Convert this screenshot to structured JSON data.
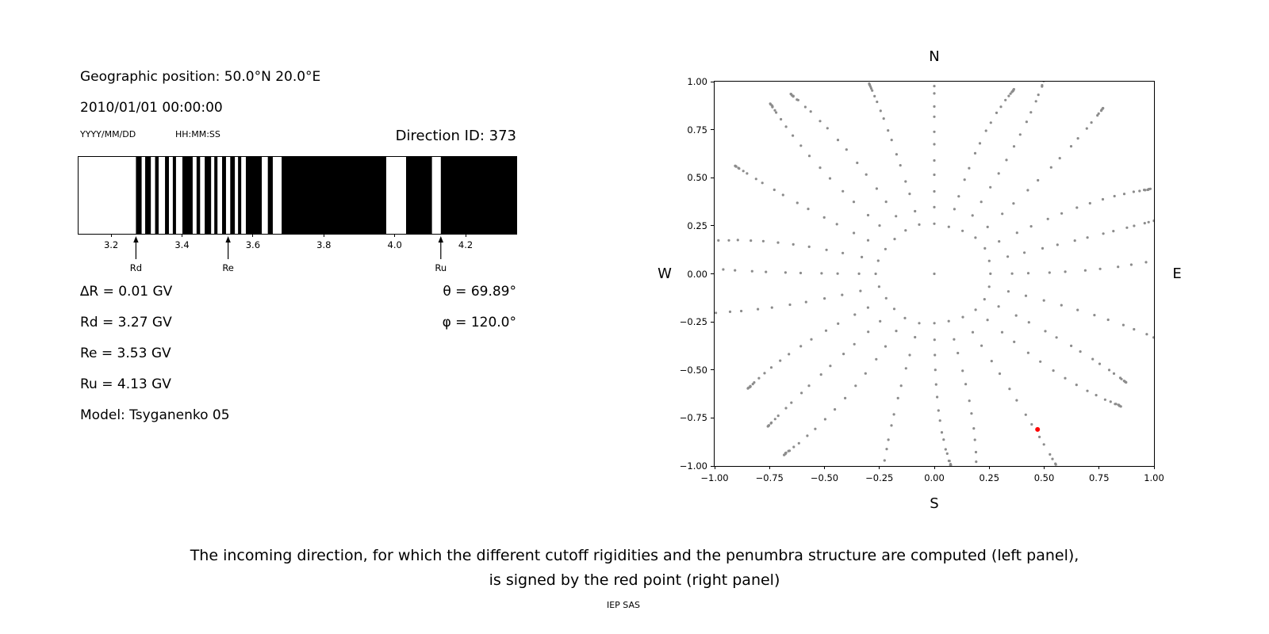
{
  "left_panel": {
    "geo_position": "Geographic position: 50.0°N 20.0°E",
    "datetime": "2010/01/01 00:00:00",
    "date_format_label": "YYYY/MM/DD",
    "time_format_label": "HH:MM:SS",
    "direction_id": "Direction ID: 373",
    "values": {
      "delta_r": "∆R = 0.01 GV",
      "rd": "Rd = 3.27 GV",
      "re": "Re = 3.53 GV",
      "ru": "Ru = 4.13 GV",
      "model": "Model: Tsyganenko 05",
      "theta": "θ = 69.89°",
      "phi": "φ = 120.0°"
    }
  },
  "caption": {
    "line1": "The incoming direction, for which the different cutoff rigidities and the penumbra structure are computed (left panel),",
    "line2": "is signed by the red point (right panel)",
    "credit": "IEP SAS"
  },
  "chart_data": [
    {
      "id": "penumbra-structure",
      "type": "bar",
      "x_range": [
        3.108,
        4.343
      ],
      "x_ticks": [
        3.2,
        3.4,
        3.6,
        3.8,
        4.0,
        4.2
      ],
      "bar_color": "#000000",
      "black_intervals": [
        [
          3.27,
          3.286
        ],
        [
          3.296,
          3.312
        ],
        [
          3.324,
          3.334
        ],
        [
          3.352,
          3.363
        ],
        [
          3.374,
          3.383
        ],
        [
          3.401,
          3.43
        ],
        [
          3.441,
          3.451
        ],
        [
          3.464,
          3.482
        ],
        [
          3.491,
          3.5
        ],
        [
          3.513,
          3.524
        ],
        [
          3.536,
          3.549
        ],
        [
          3.558,
          3.567
        ],
        [
          3.58,
          3.625
        ],
        [
          3.642,
          3.656
        ],
        [
          3.681,
          3.976
        ],
        [
          4.032,
          4.105
        ],
        [
          4.13,
          4.343
        ]
      ],
      "markers": [
        {
          "label": "Rd",
          "x": 3.27
        },
        {
          "label": "Re",
          "x": 3.53
        },
        {
          "label": "Ru",
          "x": 4.13
        }
      ]
    },
    {
      "id": "incoming-directions",
      "type": "scatter",
      "xlim": [
        -1.0,
        1.0
      ],
      "ylim": [
        -1.0,
        1.0
      ],
      "x_ticks": [
        -1.0,
        -0.75,
        -0.5,
        -0.25,
        0.0,
        0.25,
        0.5,
        0.75,
        1.0
      ],
      "y_ticks": [
        -1.0,
        -0.75,
        -0.5,
        -0.25,
        0.0,
        0.25,
        0.5,
        0.75,
        1.0
      ],
      "direction_labels": {
        "top": "N",
        "bottom": "S",
        "left": "W",
        "right": "E"
      },
      "grid_points": {
        "color": "#8c8c8c",
        "azimuth_start_deg": 0,
        "azimuth_step_deg": 15,
        "zenith_angles_deg": [
          15,
          20,
          25,
          30,
          35,
          40,
          45,
          50,
          55,
          60,
          65,
          70,
          75,
          78,
          81,
          84,
          86,
          88,
          90
        ],
        "radius_rule": "r = sin(zenith)",
        "center_point": [
          0,
          0
        ]
      },
      "red_point": {
        "x": 0.47,
        "y": -0.81,
        "color": "#ff0000"
      }
    }
  ]
}
